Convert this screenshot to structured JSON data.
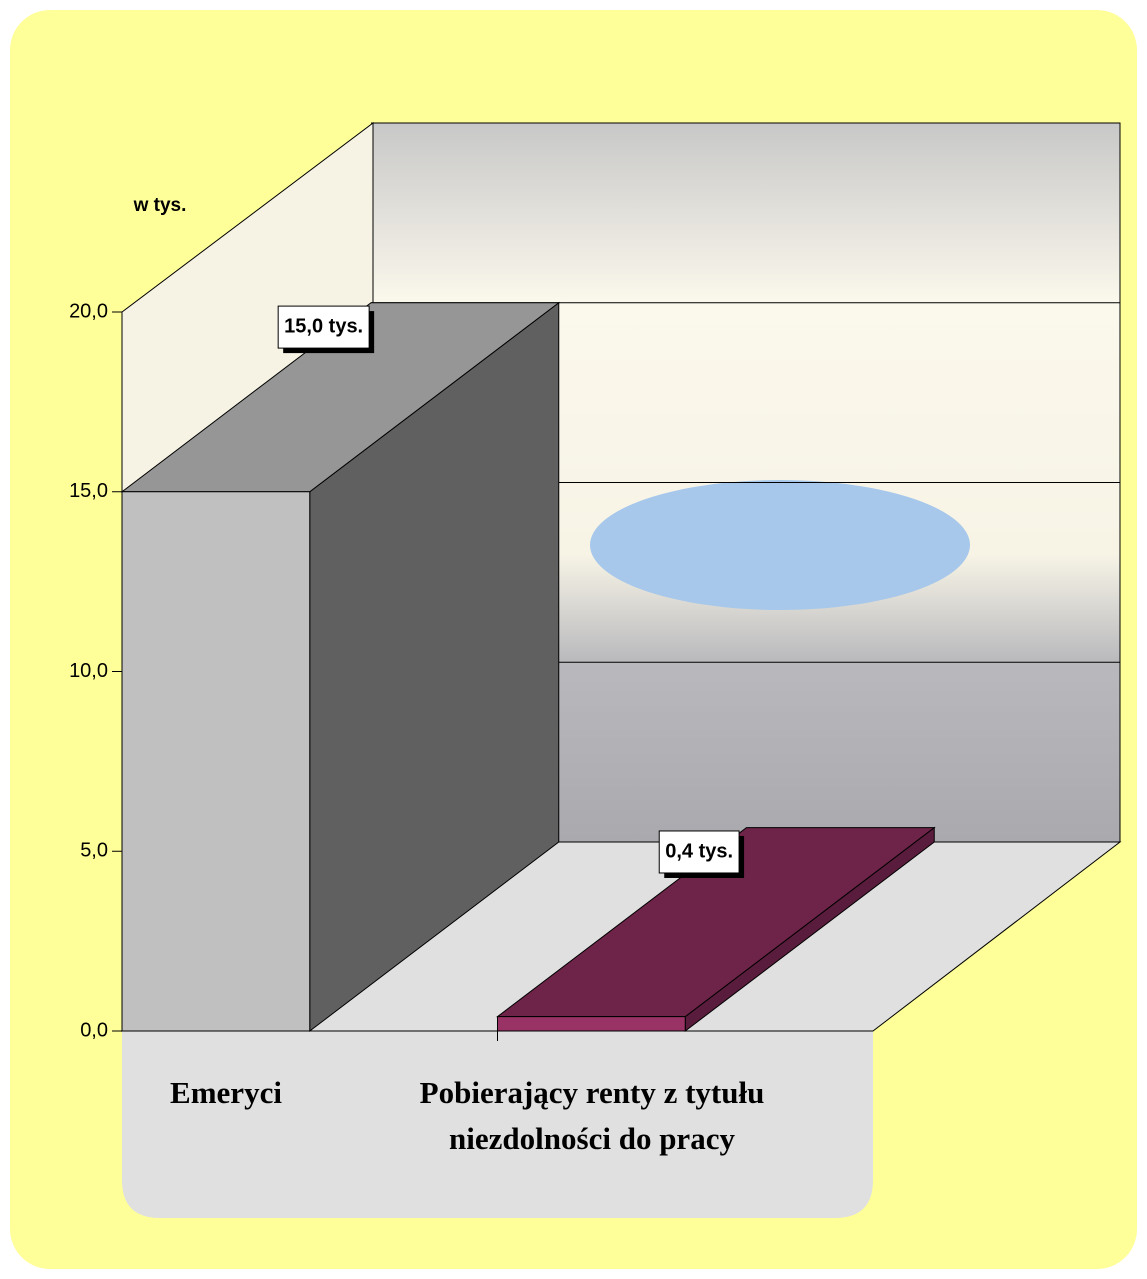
{
  "chart_data": {
    "type": "bar3d",
    "y_axis_label": "w tys.",
    "categories": [
      "Emeryci",
      "Pobierający renty z tytułu niezdolności do pracy"
    ],
    "values": [
      15.0,
      0.4
    ],
    "value_labels": [
      "15,0 tys.",
      "0,4 tys."
    ],
    "colors": [
      {
        "front": "#c0c0c0",
        "side": "#606060",
        "top": "#969696"
      },
      {
        "front": "#993366",
        "side": "#5a1c3c",
        "top": "#6e2348"
      }
    ],
    "ylim": [
      0,
      20
    ],
    "yticks": [
      {
        "value": 0,
        "label": "0,0"
      },
      {
        "value": 5,
        "label": "5,0"
      },
      {
        "value": 10,
        "label": "10,0"
      },
      {
        "value": 15,
        "label": "15,0"
      },
      {
        "value": 20,
        "label": "20,0"
      }
    ],
    "grid": true
  }
}
